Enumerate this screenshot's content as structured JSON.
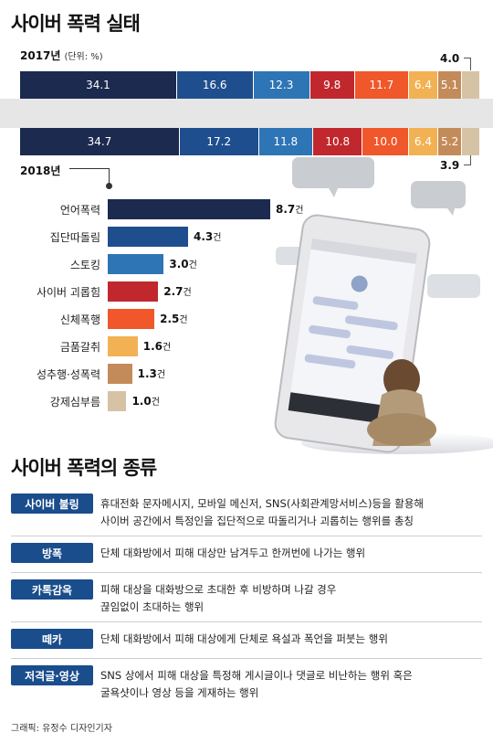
{
  "title": "사이버 폭력 실태",
  "title2": "사이버 폭력의 종류",
  "credit": "그래픽: 유정수 디자인기자",
  "chart_data": [
    {
      "type": "bar",
      "subtype": "stacked-100",
      "unit": "(단위: %)",
      "categories": [
        "2017년",
        "2018년"
      ],
      "series_colors": [
        "#1b2a4e",
        "#1f4e8e",
        "#2e75b6",
        "#c0282d",
        "#f0572a",
        "#f2b254",
        "#c48b5a",
        "#d6c3a5"
      ],
      "rows": [
        {
          "label": "2017년",
          "values": [
            34.1,
            16.6,
            12.3,
            9.8,
            11.7,
            6.4,
            5.1,
            4.0
          ],
          "labels": [
            "34.1",
            "16.6",
            "12.3",
            "9.8",
            "11.7",
            "6.4",
            "5.1",
            "4.0"
          ]
        },
        {
          "label": "2018년",
          "values": [
            34.7,
            17.2,
            11.8,
            10.8,
            10.0,
            6.4,
            5.2,
            3.9
          ],
          "labels": [
            "34.7",
            "17.2",
            "11.8",
            "10.8",
            "10.0",
            "6.4",
            "5.2",
            "3.9"
          ]
        }
      ]
    },
    {
      "type": "bar",
      "orientation": "horizontal",
      "categories": [
        "언어폭력",
        "집단따돌림",
        "스토킹",
        "사이버 괴롭힘",
        "신체폭행",
        "금품갈취",
        "성추행·성폭력",
        "강제심부름"
      ],
      "values": [
        8.7,
        4.3,
        3.0,
        2.7,
        2.5,
        1.6,
        1.3,
        1.0
      ],
      "value_labels": [
        "8.7",
        "4.3",
        "3.0",
        "2.7",
        "2.5",
        "1.6",
        "1.3",
        "1.0"
      ],
      "value_unit": "건",
      "colors": [
        "#1b2a4e",
        "#1f4e8e",
        "#2e75b6",
        "#c0282d",
        "#f0572a",
        "#f2b254",
        "#c48b5a",
        "#d6c3a5"
      ],
      "xlim": [
        0,
        8.7
      ]
    }
  ],
  "types": [
    {
      "tag": "사이버 불링",
      "line1": "휴대전화 문자메시지, 모바일 메신저, SNS(사회관계망서비스)등을 활용해",
      "line2": "사이버 공간에서 특정인을 집단적으로 따돌리거나 괴롭히는 행위를 총칭"
    },
    {
      "tag": "방폭",
      "line1": "단체 대화방에서 피해 대상만 남겨두고 한꺼번에 나가는 행위",
      "line2": ""
    },
    {
      "tag": "카톡감옥",
      "line1": "피해 대상을 대화방으로 초대한 후 비방하며 나갈 경우",
      "line2": "끊임없이 초대하는 행위"
    },
    {
      "tag": "떼카",
      "line1": "단체 대화방에서 피해 대상에게 단체로 욕설과 폭언을 퍼붓는 행위",
      "line2": ""
    },
    {
      "tag": "저격글·영상",
      "line1": "SNS 상에서 피해 대상을 특정해 게시글이나 댓글로 비난하는 행위 혹은",
      "line2": "굴욕샷이나 영상 등을 게재하는 행위"
    }
  ]
}
